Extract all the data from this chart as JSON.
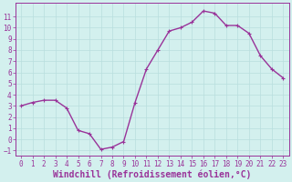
{
  "x": [
    0,
    1,
    2,
    3,
    4,
    5,
    6,
    7,
    8,
    9,
    10,
    11,
    12,
    13,
    14,
    15,
    16,
    17,
    18,
    19,
    20,
    21,
    22,
    23
  ],
  "y": [
    3.0,
    3.3,
    3.5,
    3.5,
    2.8,
    0.8,
    0.5,
    -0.9,
    -0.7,
    -0.2,
    3.3,
    6.3,
    8.0,
    9.7,
    10.0,
    10.5,
    11.5,
    11.3,
    10.2,
    10.2,
    9.5,
    7.5,
    6.3,
    5.5
  ],
  "line_color": "#993399",
  "marker": "+",
  "bg_color": "#d3f0ee",
  "grid_color": "#b8dede",
  "axis_color": "#993399",
  "xlabel": "Windchill (Refroidissement éolien,°C)",
  "ylim": [
    -1.5,
    12.2
  ],
  "xlim": [
    -0.5,
    23.5
  ],
  "yticks": [
    -1,
    0,
    1,
    2,
    3,
    4,
    5,
    6,
    7,
    8,
    9,
    10,
    11
  ],
  "xticks": [
    0,
    1,
    2,
    3,
    4,
    5,
    6,
    7,
    8,
    9,
    10,
    11,
    12,
    13,
    14,
    15,
    16,
    17,
    18,
    19,
    20,
    21,
    22,
    23
  ],
  "tick_fontsize": 5.5,
  "xlabel_fontsize": 7.0,
  "linewidth": 1.0,
  "marker_size": 3.5,
  "marker_edge_width": 0.8
}
